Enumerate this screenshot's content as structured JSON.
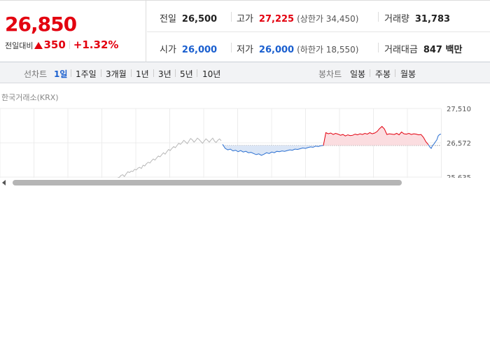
{
  "quote": {
    "price": "26,850",
    "change_label": "전일대비",
    "change_amount": "350",
    "change_rate": "+1.32%"
  },
  "stats": {
    "prev_close": {
      "label": "전일",
      "value": "26,500"
    },
    "high": {
      "label": "고가",
      "value": "27,225",
      "sub_label": "(상한가",
      "sub_value": "34,450",
      "sub_close": ")"
    },
    "volume": {
      "label": "거래량",
      "value": "31,783"
    },
    "open": {
      "label": "시가",
      "value": "26,000"
    },
    "low": {
      "label": "저가",
      "value": "26,000",
      "sub_label": "(하한가",
      "sub_value": "18,550",
      "sub_close": ")"
    },
    "trade_value": {
      "label": "거래대금",
      "value": "847 백만"
    }
  },
  "tabs": {
    "line_label": "선차트",
    "line": [
      "1일",
      "1주일",
      "3개월",
      "1년",
      "3년",
      "5년",
      "10년"
    ],
    "active": "1일",
    "candle_label": "봉차트",
    "candle": [
      "일봉",
      "주봉",
      "월봉"
    ]
  },
  "chart_source": "한국거래소(KRX)",
  "chart_data": {
    "type": "line",
    "y_ticks": [
      "27,510",
      "26,572",
      "25,635"
    ],
    "ylim": [
      25635,
      27510
    ],
    "baseline": 26500,
    "colors": {
      "prev_day": "#b8b8b8",
      "down": "#2a6fd1",
      "up": "#e3000f",
      "down_fill": "#dbe6f6",
      "up_fill": "#fbdde0"
    },
    "series": [
      {
        "values": [
          25610,
          25630,
          25680,
          25700,
          25650,
          25720,
          25780,
          25760,
          25800,
          25790,
          25850,
          25830,
          25880,
          25900,
          25870,
          25960,
          25940,
          26000,
          26040,
          26020,
          26080,
          26130,
          26100,
          26160,
          26210,
          26190,
          26250,
          26300,
          26260,
          26330,
          26390,
          26360,
          26420,
          26470,
          26440,
          26500,
          26560,
          26530,
          26580,
          26640,
          26600,
          26550,
          26620,
          26690,
          26650,
          26590,
          26640,
          26700,
          26660,
          26610,
          26560,
          26620,
          26680,
          26640,
          26590,
          26650,
          26700,
          26620,
          26580,
          26640,
          26680,
          26630
        ]
      },
      {
        "values": [
          26530,
          26420,
          26380,
          26400,
          26350,
          26370,
          26330,
          26360,
          26320,
          26340,
          26300,
          26310,
          26280,
          26250,
          26270,
          26230,
          26260,
          26300,
          26280,
          26320,
          26300,
          26340,
          26330,
          26350,
          26340,
          26360,
          26380,
          26370,
          26400,
          26390,
          26410,
          26430,
          26420,
          26440,
          26460,
          26450,
          26480,
          26470,
          26490,
          26500
        ]
      },
      {
        "values": [
          26500,
          26850,
          26820,
          26840,
          26800,
          26830,
          26810,
          26780,
          26800,
          26760,
          26790,
          26770,
          26780,
          26810,
          26790,
          26820,
          26800,
          26830,
          26810,
          26850,
          26820,
          26840,
          26880,
          26960,
          27020,
          26950,
          26800,
          26820,
          26810,
          26800,
          26830,
          26790,
          26870,
          26820,
          26810,
          26830,
          26800,
          26820,
          26810,
          26790,
          26800,
          26720,
          26600,
          26520
        ]
      },
      {
        "values": [
          26520,
          26460,
          26420,
          26500,
          26540,
          26600,
          26650,
          26760,
          26800,
          26810
        ]
      }
    ]
  }
}
